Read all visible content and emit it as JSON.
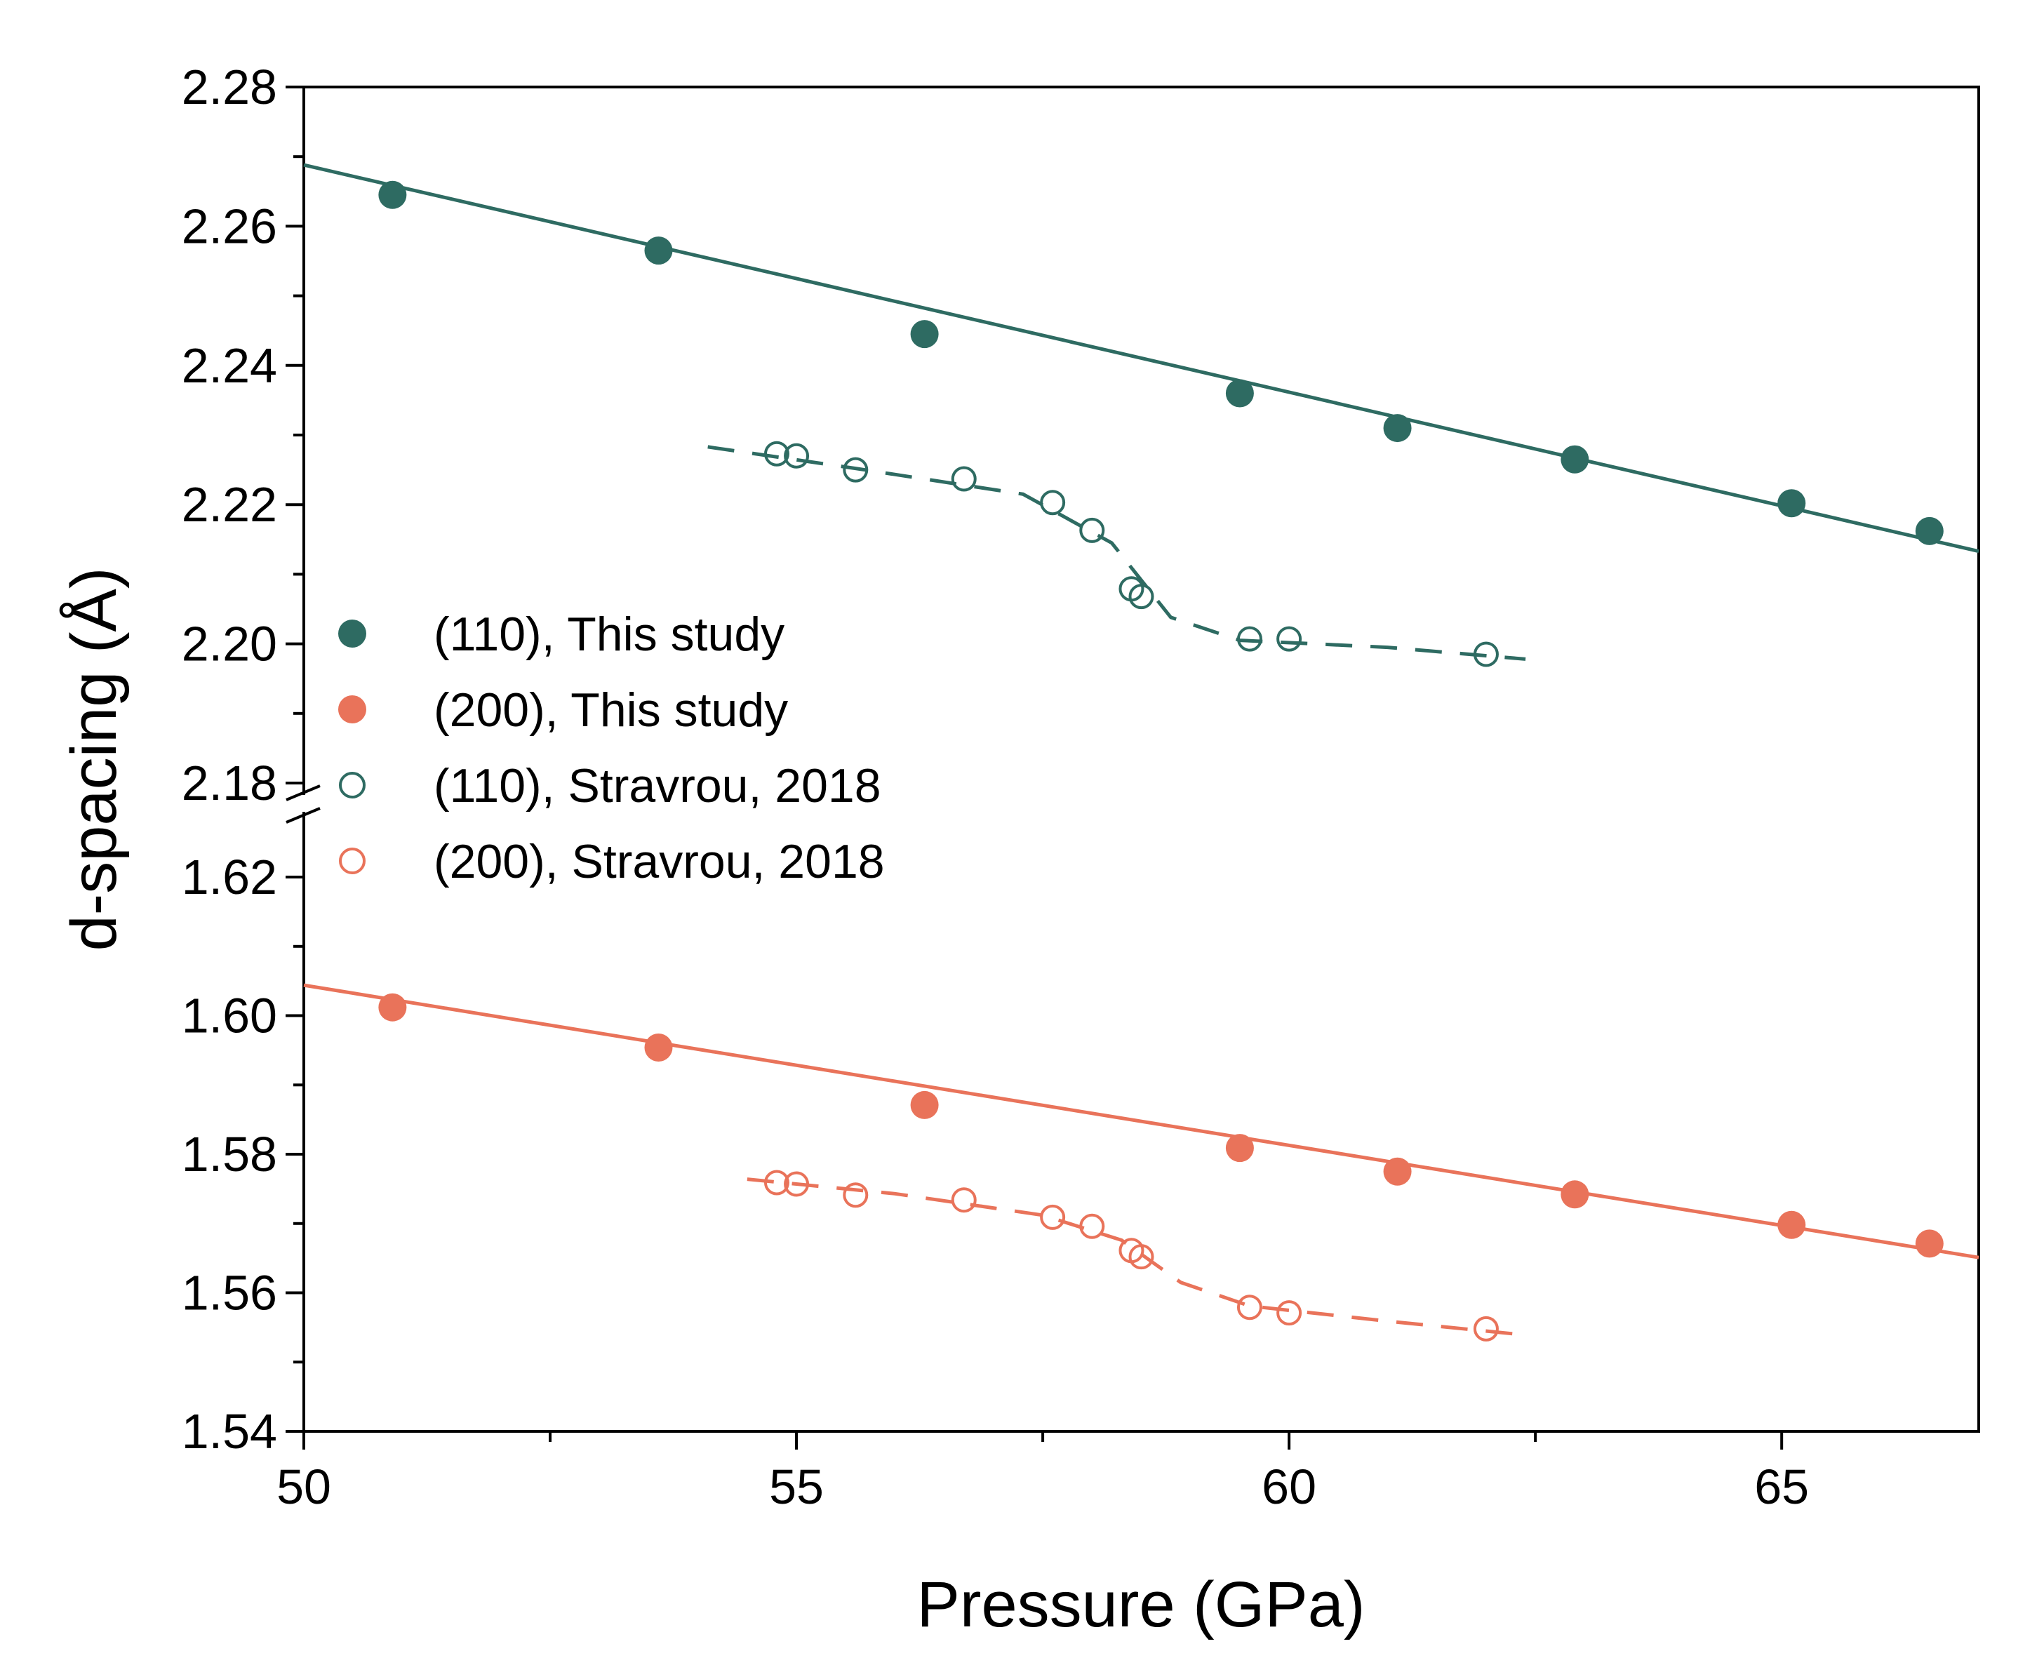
{
  "chart_data": {
    "type": "scatter",
    "xlabel": "Pressure (GPa)",
    "ylabel": "d-spacing (Å)",
    "xlim": [
      50,
      67
    ],
    "x_ticks": [
      50,
      55,
      60,
      65
    ],
    "x_tick_labels": [
      "50",
      "55",
      "60",
      "65"
    ],
    "broken_y_axis": true,
    "ylim_upper": [
      2.18,
      2.28
    ],
    "ylim_lower": [
      1.54,
      1.6275
    ],
    "y_ticks_upper": [
      2.18,
      2.2,
      2.22,
      2.24,
      2.26,
      2.28
    ],
    "y_tick_labels_upper": [
      "2.18",
      "2.20",
      "2.22",
      "2.24",
      "2.26",
      "2.28"
    ],
    "y_ticks_lower": [
      1.54,
      1.56,
      1.58,
      1.6,
      1.62
    ],
    "y_tick_labels_lower": [
      "1.54",
      "1.56",
      "1.58",
      "1.60",
      "1.62"
    ],
    "legend_position": "middle-left",
    "series": [
      {
        "name": "(110), This study",
        "panel": "upper",
        "marker": "filled-circle",
        "color": "#2E6B62",
        "x": [
          50.9,
          53.6,
          56.3,
          59.5,
          61.1,
          62.9,
          65.1,
          66.5
        ],
        "y": [
          2.2645,
          2.2565,
          2.2445,
          2.236,
          2.231,
          2.2265,
          2.2202,
          2.2162
        ],
        "fit": {
          "style": "solid",
          "x": [
            50,
            67
          ],
          "y": [
            2.2688,
            2.2133
          ]
        }
      },
      {
        "name": "(200), This study",
        "panel": "lower",
        "marker": "filled-circle",
        "color": "#E9735A",
        "x": [
          50.9,
          53.6,
          56.3,
          59.5,
          61.1,
          62.9,
          65.1,
          66.5
        ],
        "y": [
          1.6012,
          1.5954,
          1.5871,
          1.5809,
          1.5775,
          1.5742,
          1.5698,
          1.5671
        ],
        "fit": {
          "style": "solid",
          "x": [
            50,
            67
          ],
          "y": [
            1.6044,
            1.5651
          ]
        }
      },
      {
        "name": "(110), Stravrou, 2018",
        "panel": "upper",
        "marker": "open-circle",
        "color": "#2E6B62",
        "x": [
          54.8,
          55.0,
          55.6,
          56.7,
          57.6,
          58.0,
          58.4,
          58.5,
          59.6,
          60.0,
          62.0
        ],
        "y": [
          2.2273,
          2.227,
          2.225,
          2.2237,
          2.2203,
          2.2163,
          2.2079,
          2.2068,
          2.2007,
          2.2007,
          2.1985
        ],
        "fit": {
          "style": "dashed",
          "x": [
            54.1,
            55.6,
            57.3,
            58.2,
            58.8,
            59.5,
            61.0,
            62.4
          ],
          "y": [
            2.2283,
            2.2252,
            2.2215,
            2.2145,
            2.2038,
            2.2005,
            2.1995,
            2.1978
          ]
        }
      },
      {
        "name": "(200), Stravrou, 2018",
        "panel": "lower",
        "marker": "open-circle",
        "color": "#E9735A",
        "x": [
          54.8,
          55.0,
          55.6,
          56.7,
          57.6,
          58.0,
          58.4,
          58.5,
          59.6,
          60.0,
          62.0
        ],
        "y": [
          1.5759,
          1.5757,
          1.5741,
          1.5734,
          1.5709,
          1.5696,
          1.5661,
          1.5652,
          1.5579,
          1.5571,
          1.5548
        ],
        "fit": {
          "style": "dashed",
          "x": [
            54.5,
            56.0,
            57.5,
            58.3,
            58.9,
            59.6,
            61.0,
            62.4
          ],
          "y": [
            1.5764,
            1.5743,
            1.5712,
            1.5676,
            1.5615,
            1.5581,
            1.5559,
            1.5539
          ]
        }
      }
    ]
  }
}
